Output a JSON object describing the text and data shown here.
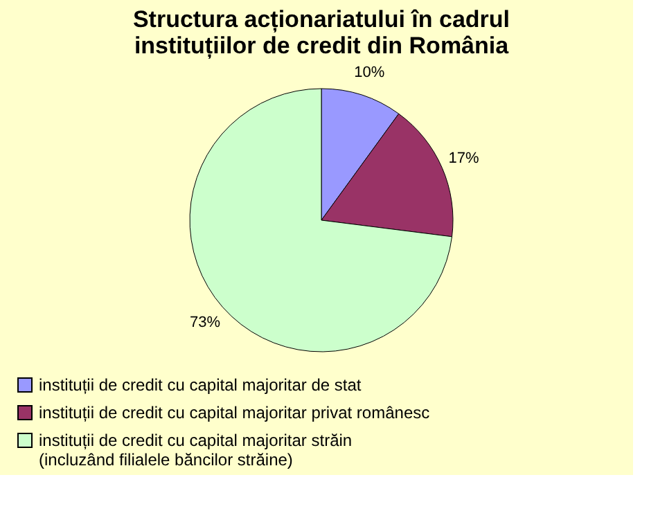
{
  "chart_data": {
    "type": "pie",
    "title": "Structura acționariatului în cadrul\ninstituțiilor de credit din România",
    "categories": [
      "instituții de credit cu capital majoritar de stat",
      "instituții de credit cu capital majoritar privat românesc",
      "instituții de credit cu capital majoritar străin\n(incluzând filialele băncilor străine)"
    ],
    "values": [
      10,
      17,
      73
    ],
    "value_labels": [
      "10%",
      "17%",
      "73%"
    ],
    "colors": [
      "#9999ff",
      "#993366",
      "#ccffcc"
    ],
    "legend": "bottom"
  }
}
